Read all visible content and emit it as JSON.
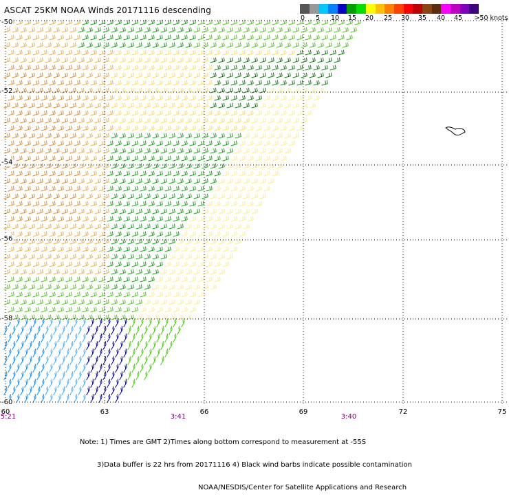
{
  "title": "ASCAT 25KM NOAA Winds 20171116 descending",
  "legend": {
    "colors": [
      "#555555",
      "#999999",
      "#00c8ff",
      "#0080ff",
      "#0000c8",
      "#00a000",
      "#00e000",
      "#ffff00",
      "#ffc000",
      "#ff8000",
      "#ff4000",
      "#ff0000",
      "#c00000",
      "#8b4513",
      "#5a2d0c",
      "#ff00ff",
      "#c000c0",
      "#8000c0",
      "#400080"
    ],
    "labels": [
      "0",
      "5",
      "10",
      "15",
      "20",
      "25",
      "30",
      "35",
      "40",
      "45",
      ">50 knots"
    ]
  },
  "axes": {
    "lat_labels": [
      "-50",
      "-52",
      "-54",
      "-56",
      "-58",
      "-60"
    ],
    "lon_labels": [
      "60",
      "63",
      "66",
      "69",
      "72",
      "75"
    ],
    "first_lon_label": "5:21"
  },
  "times": [
    "3:41",
    "3:40"
  ],
  "notes": [
    "Note: 1) Times are GMT 2)Times along bottom correspond to measurement at -55S",
    "3)Data buffer is 22 hrs from 20171116 4) Black wind barbs indicate possible contamination",
    "NOAA/NESDIS/Center for Satellite Applications and Research"
  ],
  "swath_colors": {
    "orange": "#e08a1a",
    "light_orange": "#f0b030",
    "yellow": "#ffe040",
    "pale_yellow": "#fff070",
    "green": "#00b000",
    "light_green": "#40d000",
    "dark_green": "#008000",
    "blue": "#0030d0",
    "navy": "#0000a0",
    "light_blue": "#0090ff",
    "sky_blue": "#40b0ff",
    "black": "#000000"
  }
}
